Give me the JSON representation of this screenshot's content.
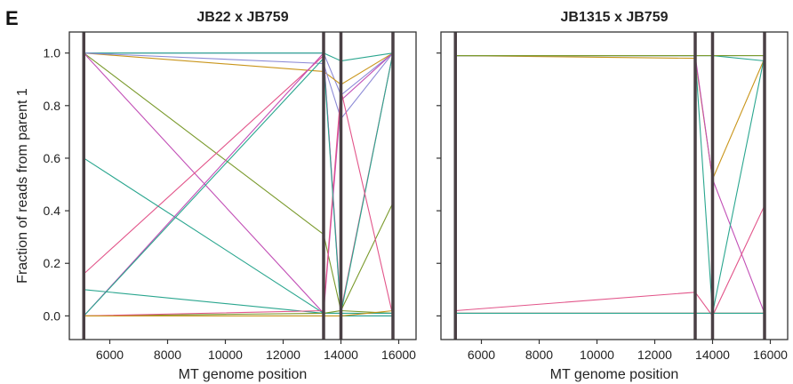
{
  "panel_letter": "E",
  "chart_data": [
    {
      "type": "line",
      "title": "JB22 x JB759",
      "xlabel": "MT genome position",
      "ylabel": "Fraction of reads from parent 1",
      "xlim": [
        4600,
        16600
      ],
      "ylim": [
        -0.09,
        1.08
      ],
      "xticks": [
        6000,
        8000,
        10000,
        12000,
        14000,
        16000
      ],
      "yticks": [
        0.0,
        0.2,
        0.4,
        0.6,
        0.8,
        1.0
      ],
      "ytick_labels": [
        "0.0",
        "0.2",
        "0.4",
        "0.6",
        "0.8",
        "1.0"
      ],
      "show_yticklabels": true,
      "vertical_lines": [
        5100,
        13400,
        14000,
        15800
      ],
      "x": [
        5100,
        13400,
        14000,
        15800
      ],
      "grid": false,
      "series": [
        {
          "color": "#8c8ad6",
          "values": [
            1.0,
            1.0,
            0.84,
            1.0
          ]
        },
        {
          "color": "#c9951a",
          "values": [
            1.0,
            0.93,
            0.88,
            1.0
          ]
        },
        {
          "color": "#7a9a2c",
          "values": [
            1.0,
            0.31,
            0.02,
            0.01
          ]
        },
        {
          "color": "#c24fb6",
          "values": [
            1.0,
            0.01,
            0.82,
            1.0
          ]
        },
        {
          "color": "#2aa68f",
          "values": [
            1.0,
            1.0,
            0.97,
            1.0
          ]
        },
        {
          "color": "#8c8ad6",
          "values": [
            1.0,
            0.96,
            0.75,
            1.0
          ]
        },
        {
          "color": "#e2558a",
          "values": [
            0.16,
            0.99,
            0.02,
            1.0
          ]
        },
        {
          "color": "#2aa68f",
          "values": [
            0.6,
            0.01,
            0.01,
            0.01
          ]
        },
        {
          "color": "#2aa68f",
          "values": [
            0.1,
            0.01,
            0.01,
            1.0
          ]
        },
        {
          "color": "#4a9ac2",
          "values": [
            0.0,
            0.0,
            0.0,
            0.0
          ]
        },
        {
          "color": "#7a9a2c",
          "values": [
            0.0,
            0.01,
            0.02,
            0.43
          ]
        },
        {
          "color": "#c24fb6",
          "values": [
            0.0,
            1.0,
            0.0,
            0.0
          ]
        },
        {
          "color": "#e2558a",
          "values": [
            0.0,
            0.02,
            0.86,
            0.0
          ]
        },
        {
          "color": "#2aa68f",
          "values": [
            0.0,
            0.98,
            0.0,
            0.0
          ]
        },
        {
          "color": "#c9951a",
          "values": [
            0.0,
            0.0,
            0.0,
            0.02
          ]
        }
      ]
    },
    {
      "type": "line",
      "title": "JB1315  x JB759",
      "xlabel": "MT genome position",
      "ylabel": "",
      "xlim": [
        4600,
        16600
      ],
      "ylim": [
        -0.09,
        1.08
      ],
      "xticks": [
        6000,
        8000,
        10000,
        12000,
        14000,
        16000
      ],
      "yticks": [
        0.0,
        0.2,
        0.4,
        0.6,
        0.8,
        1.0
      ],
      "ytick_labels": [
        "",
        "",
        "",
        "",
        "",
        ""
      ],
      "show_yticklabels": false,
      "vertical_lines": [
        5100,
        13400,
        14000,
        15800
      ],
      "x": [
        5100,
        13400,
        14000,
        15800
      ],
      "grid": false,
      "series": [
        {
          "color": "#8c8ad6",
          "values": [
            0.99,
            0.99,
            0.99,
            0.99
          ]
        },
        {
          "color": "#2aa68f",
          "values": [
            0.99,
            0.99,
            0.99,
            0.97
          ]
        },
        {
          "color": "#c9951a",
          "values": [
            0.99,
            0.98,
            0.52,
            0.98
          ]
        },
        {
          "color": "#c24fb6",
          "values": [
            0.99,
            0.99,
            0.52,
            0.01
          ]
        },
        {
          "color": "#2aa68f",
          "values": [
            0.99,
            0.99,
            0.01,
            0.99
          ]
        },
        {
          "color": "#7a9a2c",
          "values": [
            0.99,
            0.99,
            0.99,
            0.99
          ]
        },
        {
          "color": "#e2558a",
          "values": [
            0.02,
            0.09,
            0.0,
            0.42
          ]
        },
        {
          "color": "#e2558a",
          "values": [
            0.01,
            0.01,
            0.01,
            0.01
          ]
        },
        {
          "color": "#c24fb6",
          "values": [
            0.01,
            0.01,
            0.01,
            0.01
          ]
        },
        {
          "color": "#c9951a",
          "values": [
            0.01,
            0.01,
            0.01,
            0.01
          ]
        },
        {
          "color": "#2aa68f",
          "values": [
            0.01,
            0.01,
            0.01,
            0.01
          ]
        }
      ]
    }
  ]
}
